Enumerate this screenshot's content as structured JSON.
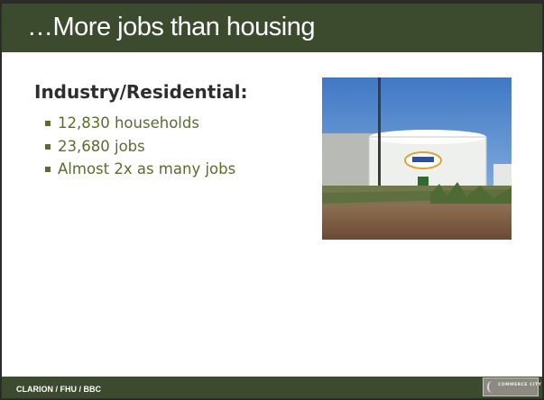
{
  "slide": {
    "title": "…More jobs than housing",
    "heading": "Industry/Residential:",
    "bullets": [
      "12,830 households",
      "23,680 jobs",
      "Almost 2x as many jobs"
    ],
    "footer": "CLARION / FHU / BBC",
    "logo": "COMMERCE CITY"
  }
}
